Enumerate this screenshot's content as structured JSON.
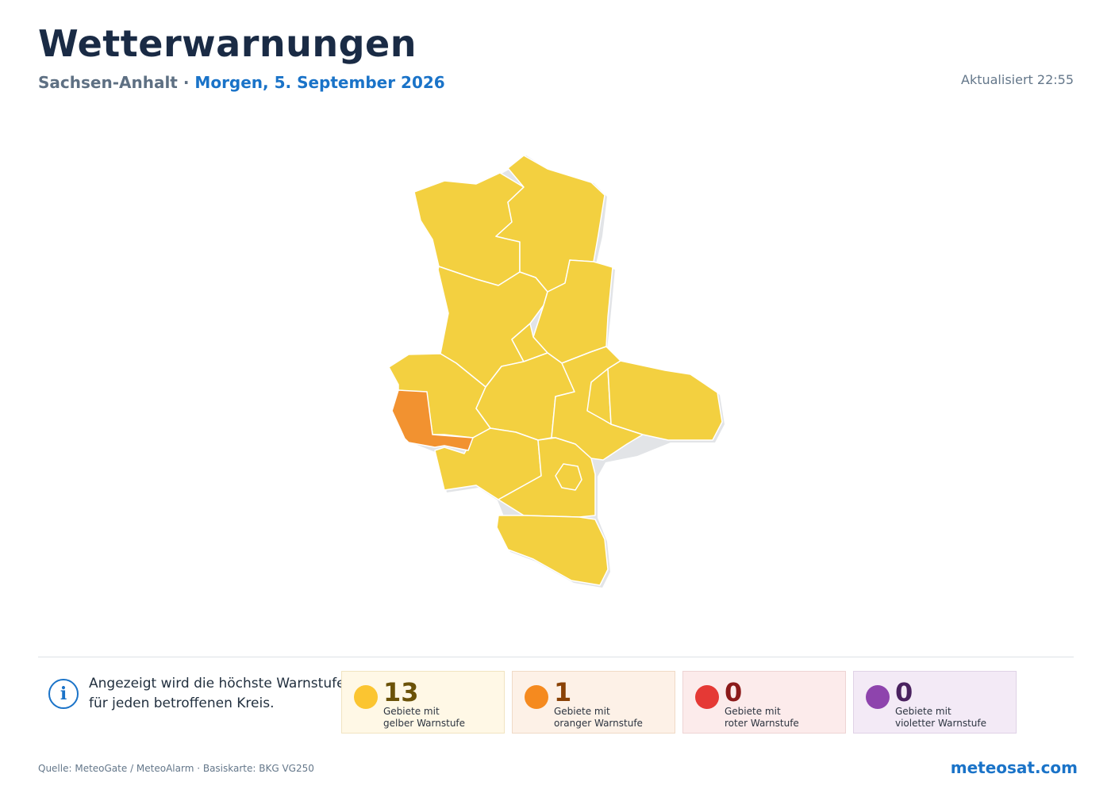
{
  "header": {
    "title": "Wetterwarnungen",
    "region": "Sachsen-Anhalt",
    "separator": "·",
    "date": "Morgen, 5. September 2026",
    "updated": "Aktualisiert 22:55"
  },
  "colors": {
    "yellow": "#f3d040",
    "orange": "#f29230",
    "red": "#e53935",
    "violet": "#8e44ad",
    "border": "#ffffff",
    "shadow": "#e2e4e7"
  },
  "map": {
    "districts": [
      {
        "level": "yellow"
      },
      {
        "level": "yellow"
      },
      {
        "level": "yellow"
      },
      {
        "level": "yellow"
      },
      {
        "level": "yellow"
      },
      {
        "level": "yellow"
      },
      {
        "level": "yellow"
      },
      {
        "level": "yellow"
      },
      {
        "level": "yellow"
      },
      {
        "level": "yellow"
      },
      {
        "level": "yellow"
      },
      {
        "level": "yellow"
      },
      {
        "level": "yellow"
      },
      {
        "level": "orange"
      }
    ]
  },
  "info": {
    "icon": "info-icon",
    "line1": "Angezeigt wird die höchste Warnstufe",
    "line2": "für jeden betroffenen Kreis."
  },
  "legend": [
    {
      "count": "13",
      "label": "Gebiete mit\ngelber Warnstufe",
      "color": "#fbc531",
      "text_color": "#6b5208"
    },
    {
      "count": "1",
      "label": "Gebiete mit\noranger Warnstufe",
      "color": "#f58a1f",
      "text_color": "#8a4206"
    },
    {
      "count": "0",
      "label": "Gebiete mit\nroter Warnstufe",
      "color": "#e53935",
      "text_color": "#8c1a1a"
    },
    {
      "count": "0",
      "label": "Gebiete mit\nvioletter Warnstufe",
      "color": "#8e44ad",
      "text_color": "#4a2260"
    }
  ],
  "footer": {
    "source": "Quelle: MeteoGate / MeteoAlarm · Basiskarte: BKG VG250",
    "brand": "meteosat.com"
  }
}
